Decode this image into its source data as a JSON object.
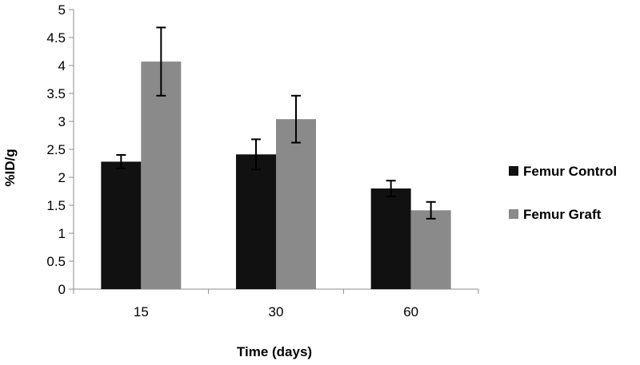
{
  "chart_data": {
    "type": "bar",
    "title": "",
    "xlabel": "Time (days)",
    "ylabel": "%ID/g",
    "ylim": [
      0,
      5
    ],
    "yticks": [
      "0",
      "0.5",
      "1",
      "1.5",
      "2",
      "2.5",
      "3",
      "3.5",
      "4",
      "4.5",
      "5"
    ],
    "categories": [
      "15",
      "30",
      "60"
    ],
    "grid": false,
    "legend_position": "right",
    "series": [
      {
        "name": "Femur Control",
        "color": "#111111",
        "values": [
          2.28,
          2.41,
          1.8
        ],
        "errors": [
          0.12,
          0.27,
          0.14
        ]
      },
      {
        "name": "Femur Graft",
        "color": "#8a8a8a",
        "values": [
          4.07,
          3.04,
          1.41
        ],
        "errors": [
          0.61,
          0.42,
          0.15
        ]
      }
    ]
  }
}
